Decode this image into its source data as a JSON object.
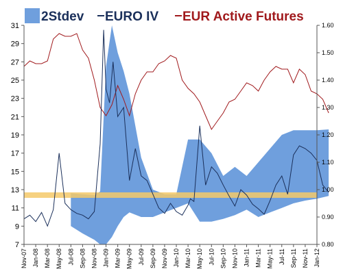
{
  "chart_data": {
    "type": "line",
    "legend": [
      {
        "label": "2Stdev",
        "color": "#6f9fdd",
        "kind": "area"
      },
      {
        "label": "EURO IV",
        "color": "#1a2f5a",
        "kind": "line"
      },
      {
        "label": "EUR Active Futures",
        "color": "#a0191c",
        "kind": "line"
      }
    ],
    "legend_placement": "top",
    "x_tick_labels": [
      "Nov-07",
      "Jan-08",
      "Mar-08",
      "May-08",
      "Jul-08",
      "Sep-08",
      "Nov-08",
      "Jan-09",
      "Mar-09",
      "May-09",
      "Jul-09",
      "Sep-09",
      "Nov-09",
      "Jan-10",
      "Mar-10",
      "May-10",
      "Jul-10",
      "Sep-10",
      "Nov-10",
      "Jan-11",
      "Mar-11",
      "May-11",
      "Jul-11",
      "Sep-11",
      "Nov-11",
      "Jan-12"
    ],
    "left_axis": {
      "ylim": [
        7,
        31
      ],
      "ticks": [
        7,
        9,
        11,
        13,
        15,
        17,
        19,
        21,
        23,
        25,
        27,
        29,
        31
      ]
    },
    "right_axis": {
      "ylim": [
        0.8,
        1.6
      ],
      "ticks": [
        "0.80",
        "0.90",
        "1.00",
        "1.10",
        "1.20",
        "1.30",
        "1.40",
        "1.50",
        "1.60"
      ]
    },
    "grid": false,
    "reference_band": {
      "value": 12.4,
      "color": "#f5c96a"
    },
    "series": [
      {
        "name": "2Stdev",
        "axis": "left",
        "x": [
          0,
          1,
          2,
          3,
          4,
          5,
          6,
          6.5,
          7,
          7.5,
          8,
          8.5,
          9,
          10,
          11,
          12,
          13,
          14,
          15,
          16,
          17,
          18,
          19,
          20,
          21,
          22,
          23,
          24,
          25,
          26
        ],
        "lower": [
          null,
          null,
          null,
          null,
          9.0,
          8.2,
          7.5,
          7.0,
          7.0,
          7.8,
          9.0,
          10.0,
          10.5,
          10.0,
          10.0,
          10.5,
          11.0,
          11.5,
          9.5,
          9.5,
          9.8,
          10.2,
          10.8,
          10.0,
          10.5,
          11.0,
          11.5,
          11.8,
          12.0,
          12.3
        ],
        "upper": [
          null,
          null,
          null,
          null,
          12.6,
          12.5,
          12.4,
          12.8,
          26.5,
          31.0,
          28.0,
          26.0,
          23.5,
          16.5,
          13.0,
          12.5,
          12.5,
          18.5,
          18.5,
          17.0,
          14.5,
          15.5,
          14.5,
          16.0,
          17.5,
          19.0,
          19.5,
          19.5,
          19.5,
          19.6
        ]
      },
      {
        "name": "EURO IV",
        "axis": "left",
        "x": [
          0,
          0.5,
          1,
          1.5,
          2,
          2.5,
          3,
          3.5,
          4,
          4.5,
          5,
          5.5,
          6,
          6.5,
          6.8,
          7,
          7.3,
          7.6,
          8,
          8.5,
          9,
          9.5,
          10,
          10.5,
          11,
          11.5,
          12,
          12.5,
          13,
          13.5,
          14,
          14.2,
          14.5,
          15,
          15.5,
          16,
          16.5,
          17,
          17.5,
          18,
          18.5,
          19,
          19.5,
          20,
          20.5,
          21,
          21.5,
          22,
          22.5,
          23,
          23.5,
          24,
          24.5,
          25,
          25.5,
          26
        ],
        "values": [
          9.8,
          10.2,
          9.5,
          10.5,
          9.0,
          10.8,
          17.0,
          11.5,
          10.8,
          10.4,
          10.2,
          9.8,
          10.6,
          18.0,
          30.5,
          24.0,
          22.5,
          27.0,
          21.0,
          22.0,
          14.0,
          17.5,
          14.5,
          14.0,
          12.5,
          11.0,
          10.4,
          11.5,
          10.6,
          10.2,
          11.3,
          12.0,
          11.7,
          20.0,
          13.5,
          15.5,
          14.8,
          13.5,
          12.3,
          11.2,
          13.0,
          12.4,
          11.4,
          10.9,
          10.3,
          11.8,
          13.5,
          14.5,
          12.5,
          16.8,
          17.8,
          17.5,
          17.0,
          16.2,
          13.5,
          12.7
        ]
      },
      {
        "name": "EUR Active Futures",
        "axis": "right",
        "x": [
          0,
          0.5,
          1,
          1.5,
          2,
          2.5,
          3,
          3.5,
          4,
          4.5,
          5,
          5.5,
          6,
          6.5,
          7,
          7.5,
          8,
          8.5,
          9,
          9.5,
          10,
          10.5,
          11,
          11.5,
          12,
          12.5,
          13,
          13.5,
          14,
          14.5,
          15,
          15.5,
          16,
          16.5,
          17,
          17.5,
          18,
          18.5,
          19,
          19.5,
          20,
          20.5,
          21,
          21.5,
          22,
          22.5,
          23,
          23.5,
          24,
          24.5,
          25,
          25.5,
          26
        ],
        "values": [
          1.45,
          1.47,
          1.46,
          1.46,
          1.47,
          1.55,
          1.57,
          1.56,
          1.56,
          1.57,
          1.51,
          1.48,
          1.4,
          1.3,
          1.27,
          1.31,
          1.38,
          1.33,
          1.27,
          1.35,
          1.4,
          1.43,
          1.43,
          1.46,
          1.47,
          1.49,
          1.48,
          1.4,
          1.37,
          1.35,
          1.32,
          1.27,
          1.22,
          1.25,
          1.28,
          1.32,
          1.33,
          1.36,
          1.39,
          1.38,
          1.36,
          1.4,
          1.43,
          1.45,
          1.44,
          1.44,
          1.39,
          1.44,
          1.42,
          1.36,
          1.35,
          1.33,
          1.28
        ]
      }
    ]
  }
}
